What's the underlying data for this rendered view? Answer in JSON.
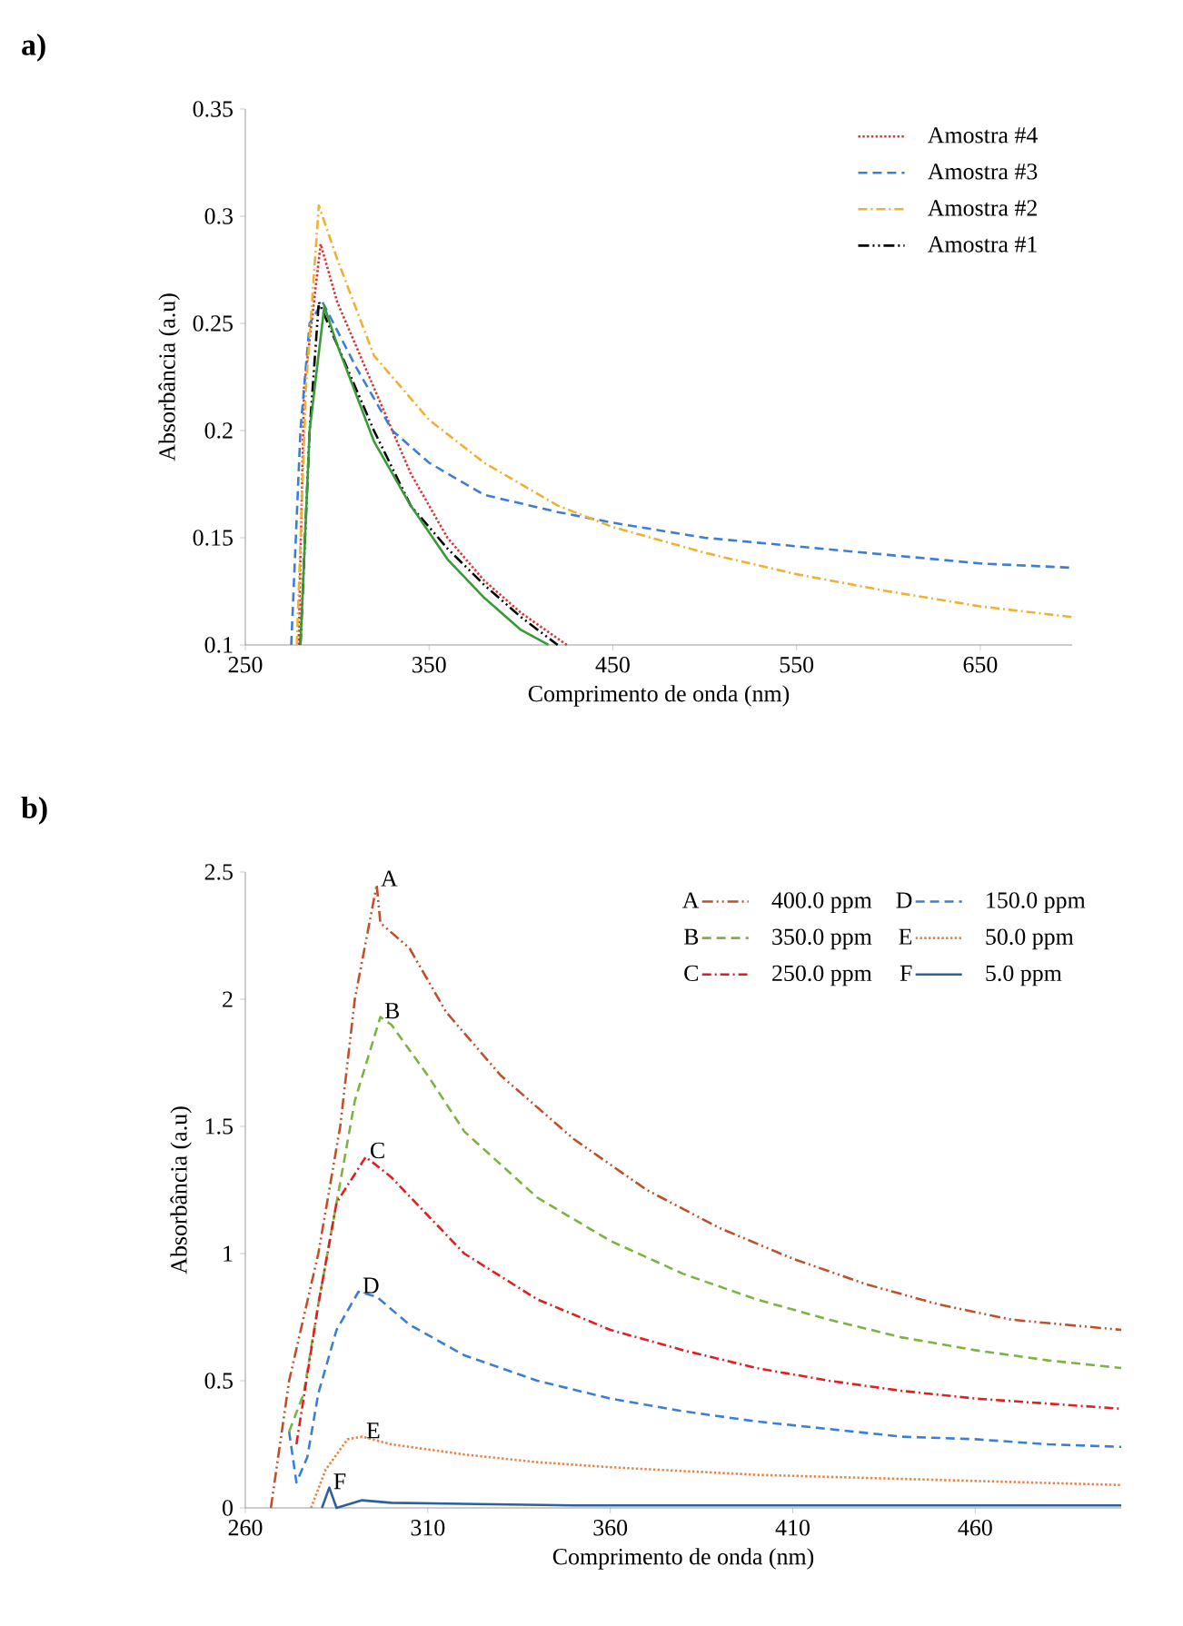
{
  "chart_data": [
    {
      "type": "line",
      "title": "a)",
      "xlabel": "Comprimento de onda (nm)",
      "ylabel": "Absorbância (a.u)",
      "xlim": [
        250,
        700
      ],
      "xticks": [
        250,
        350,
        450,
        550,
        650
      ],
      "ylim": [
        0.1,
        0.35
      ],
      "yticks": [
        0.1,
        0.15,
        0.2,
        0.25,
        0.3,
        0.35
      ],
      "grid": false,
      "legend": "top right",
      "series": [
        {
          "name": "Amostra #4",
          "color": "#e03030",
          "line_style": "dotted",
          "x": [
            279,
            282,
            291,
            300,
            320,
            340,
            360,
            380,
            400,
            425
          ],
          "values": [
            0.1,
            0.22,
            0.287,
            0.26,
            0.22,
            0.18,
            0.15,
            0.13,
            0.115,
            0.1
          ]
        },
        {
          "name": "Amostra #3",
          "color": "#3a7fd5",
          "line_style": "dashed",
          "x": [
            275,
            280,
            285,
            292,
            310,
            330,
            350,
            380,
            420,
            450,
            500,
            550,
            600,
            650,
            700
          ],
          "values": [
            0.1,
            0.2,
            0.25,
            0.26,
            0.23,
            0.2,
            0.185,
            0.17,
            0.162,
            0.157,
            0.15,
            0.146,
            0.142,
            0.138,
            0.136
          ]
        },
        {
          "name": "Amostra #2",
          "color": "#f0b030",
          "line_style": "dashdot",
          "x": [
            278,
            283,
            290,
            300,
            320,
            350,
            380,
            420,
            450,
            500,
            550,
            600,
            650,
            700
          ],
          "values": [
            0.1,
            0.22,
            0.305,
            0.28,
            0.235,
            0.205,
            0.185,
            0.165,
            0.155,
            0.143,
            0.133,
            0.125,
            0.118,
            0.113
          ]
        },
        {
          "name": "Amostra #1",
          "color": "#000000",
          "line_style": "dashdotdot",
          "x": [
            280,
            285,
            290,
            300,
            320,
            340,
            360,
            380,
            400,
            420
          ],
          "values": [
            0.1,
            0.2,
            0.26,
            0.24,
            0.2,
            0.165,
            0.145,
            0.128,
            0.113,
            0.1
          ]
        },
        {
          "color": "#3a9a3a",
          "line_style": "solid",
          "x": [
            280,
            285,
            293,
            300,
            320,
            340,
            360,
            380,
            400,
            415
          ],
          "values": [
            0.1,
            0.2,
            0.258,
            0.24,
            0.195,
            0.165,
            0.14,
            0.122,
            0.107,
            0.1
          ]
        }
      ]
    },
    {
      "type": "line",
      "title": "b)",
      "xlabel": "Comprimento de onda (nm)",
      "ylabel": "Absorbância (a.u)",
      "xlim": [
        260,
        500
      ],
      "xticks": [
        260,
        310,
        360,
        410,
        460
      ],
      "ylim": [
        0,
        2.5
      ],
      "yticks": [
        0,
        0.5,
        1,
        1.5,
        2,
        2.5
      ],
      "grid": false,
      "legend": "top right",
      "series": [
        {
          "name": "400.0 ppm",
          "color": "#c0502a",
          "line_style": "dashdotdot",
          "x": [
            267,
            272,
            276,
            280,
            286,
            290,
            296,
            297,
            305,
            315,
            330,
            350,
            370,
            390,
            410,
            430,
            450,
            470,
            500
          ],
          "values": [
            0,
            0.5,
            0.75,
            1.0,
            1.5,
            2.0,
            2.45,
            2.3,
            2.2,
            1.95,
            1.7,
            1.45,
            1.25,
            1.1,
            0.98,
            0.88,
            0.8,
            0.74,
            0.7
          ]
        },
        {
          "name": "350.0 ppm",
          "color": "#7cb342",
          "line_style": "dashed",
          "x": [
            272,
            276,
            280,
            285,
            290,
            297,
            300,
            310,
            320,
            340,
            360,
            380,
            400,
            420,
            440,
            460,
            480,
            500
          ],
          "values": [
            0.3,
            0.45,
            0.8,
            1.2,
            1.6,
            1.93,
            1.9,
            1.7,
            1.48,
            1.22,
            1.05,
            0.92,
            0.82,
            0.74,
            0.67,
            0.62,
            0.58,
            0.55
          ]
        },
        {
          "name": "250.0 ppm",
          "color": "#e02020",
          "line_style": "dashdot",
          "x": [
            274,
            280,
            285,
            293,
            300,
            310,
            320,
            340,
            360,
            380,
            400,
            420,
            440,
            460,
            480,
            500
          ],
          "values": [
            0.25,
            0.8,
            1.2,
            1.38,
            1.3,
            1.15,
            1.0,
            0.82,
            0.7,
            0.62,
            0.55,
            0.5,
            0.46,
            0.43,
            0.41,
            0.39
          ]
        },
        {
          "name": "150.0 ppm",
          "color": "#3a7fd5",
          "line_style": "dashed",
          "x": [
            272,
            274,
            277,
            280,
            285,
            291,
            296,
            305,
            320,
            340,
            360,
            380,
            400,
            420,
            440,
            460,
            480,
            500
          ],
          "values": [
            0.3,
            0.1,
            0.2,
            0.45,
            0.7,
            0.85,
            0.83,
            0.72,
            0.6,
            0.5,
            0.43,
            0.38,
            0.34,
            0.31,
            0.28,
            0.27,
            0.25,
            0.24
          ]
        },
        {
          "name": "50.0 ppm",
          "color": "#f08040",
          "line_style": "dotted",
          "x": [
            278,
            282,
            288,
            292,
            300,
            320,
            340,
            360,
            400,
            450,
            500
          ],
          "values": [
            0,
            0.15,
            0.27,
            0.28,
            0.25,
            0.21,
            0.18,
            0.16,
            0.13,
            0.11,
            0.09
          ]
        },
        {
          "name": "5.0 ppm",
          "color": "#2e5fa0",
          "line_style": "solid",
          "x": [
            281,
            283,
            285,
            292,
            300,
            350,
            400,
            500
          ],
          "values": [
            0,
            0.08,
            0,
            0.03,
            0.02,
            0.01,
            0.01,
            0.01
          ]
        }
      ],
      "annotations": [
        {
          "text": "A",
          "x": 296,
          "y": 2.45
        },
        {
          "text": "B",
          "x": 297,
          "y": 1.93
        },
        {
          "text": "C",
          "x": 293,
          "y": 1.38
        },
        {
          "text": "D",
          "x": 291,
          "y": 0.85
        },
        {
          "text": "E",
          "x": 292,
          "y": 0.28
        },
        {
          "text": "F",
          "x": 283,
          "y": 0.08
        }
      ]
    }
  ]
}
